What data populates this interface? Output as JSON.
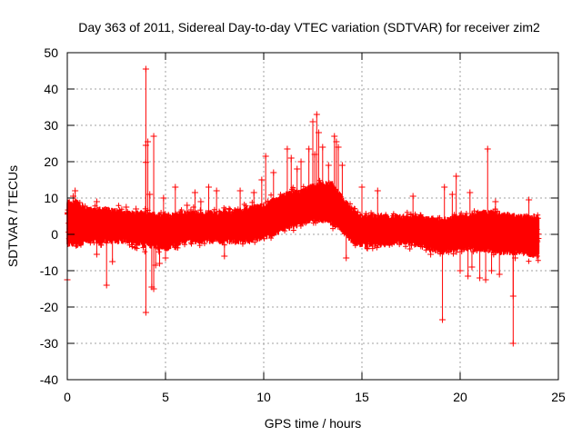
{
  "chart_data": {
    "type": "scatter",
    "title": "Day 363 of 2011, Sidereal Day-to-day VTEC variation (SDTVAR) for receiver zim2",
    "xlabel": "GPS time / hours",
    "ylabel": "SDTVAR / TECUs",
    "xlim": [
      0,
      25
    ],
    "ylim": [
      -40,
      50
    ],
    "xticks": [
      0,
      5,
      10,
      15,
      20,
      25
    ],
    "yticks": [
      -40,
      -30,
      -20,
      -10,
      0,
      10,
      20,
      30,
      40,
      50
    ],
    "grid": true,
    "marker": "+",
    "series_color": "#ff0000",
    "band": {
      "x": [
        0,
        0.5,
        1,
        2,
        3,
        4,
        5,
        6,
        7,
        8,
        9,
        10,
        11,
        12,
        12.7,
        13.5,
        14,
        14.5,
        15,
        16,
        17,
        18,
        19,
        20,
        21,
        22,
        23,
        24
      ],
      "lower": [
        -3,
        -3,
        -2,
        -2,
        -2,
        -3,
        -4,
        -2,
        -2,
        -2,
        -2,
        -1,
        1,
        3,
        4,
        3,
        1,
        -2,
        -3,
        -3,
        -2,
        -3,
        -5,
        -4,
        -4,
        -5,
        -5,
        -6
      ],
      "upper": [
        9,
        9,
        7,
        7,
        6,
        6,
        5,
        6,
        6,
        6,
        7,
        8,
        11,
        12,
        14,
        14,
        10,
        7,
        5,
        5,
        5,
        5,
        4,
        5,
        6,
        6,
        5,
        5
      ]
    },
    "outliers": [
      {
        "x": 4.0,
        "y": 45.5
      },
      {
        "x": 4.0,
        "y": 24.5
      },
      {
        "x": 4.1,
        "y": 25.5
      },
      {
        "x": 4.4,
        "y": 27.0
      },
      {
        "x": 4.0,
        "y": 19.8
      },
      {
        "x": 4.2,
        "y": 11.0
      },
      {
        "x": 4.0,
        "y": -21.5
      },
      {
        "x": 4.4,
        "y": -15.0
      },
      {
        "x": 4.3,
        "y": -14.5
      },
      {
        "x": 2.0,
        "y": -14.0
      },
      {
        "x": 0.0,
        "y": -12.5
      },
      {
        "x": 0.3,
        "y": 10.5
      },
      {
        "x": 0.4,
        "y": 12.0
      },
      {
        "x": 1.5,
        "y": 9.0
      },
      {
        "x": 1.5,
        "y": -5.5
      },
      {
        "x": 2.3,
        "y": -7.5
      },
      {
        "x": 3.0,
        "y": 7.5
      },
      {
        "x": 3.5,
        "y": 7.0
      },
      {
        "x": 4.5,
        "y": -8.5
      },
      {
        "x": 4.7,
        "y": -8.0
      },
      {
        "x": 4.9,
        "y": 10.0
      },
      {
        "x": 5.0,
        "y": -6.5
      },
      {
        "x": 5.5,
        "y": 13.0
      },
      {
        "x": 6.1,
        "y": 8.0
      },
      {
        "x": 6.5,
        "y": 11.5
      },
      {
        "x": 6.8,
        "y": 9.0
      },
      {
        "x": 7.2,
        "y": 13.0
      },
      {
        "x": 7.6,
        "y": 12.0
      },
      {
        "x": 8.0,
        "y": -6.0
      },
      {
        "x": 8.8,
        "y": 12.0
      },
      {
        "x": 9.5,
        "y": 11.5
      },
      {
        "x": 9.9,
        "y": 15.0
      },
      {
        "x": 10.1,
        "y": 21.5
      },
      {
        "x": 10.5,
        "y": 17.0
      },
      {
        "x": 11.2,
        "y": 23.5
      },
      {
        "x": 11.4,
        "y": 21.0
      },
      {
        "x": 11.7,
        "y": 18.0
      },
      {
        "x": 11.9,
        "y": 20.0
      },
      {
        "x": 12.3,
        "y": 23.5
      },
      {
        "x": 12.5,
        "y": 31.0
      },
      {
        "x": 12.7,
        "y": 33.0
      },
      {
        "x": 12.8,
        "y": 28.0
      },
      {
        "x": 12.6,
        "y": 22.0
      },
      {
        "x": 13.0,
        "y": 24.0
      },
      {
        "x": 13.3,
        "y": 19.0
      },
      {
        "x": 13.6,
        "y": 27.0
      },
      {
        "x": 13.7,
        "y": 25.5
      },
      {
        "x": 13.8,
        "y": 24.0
      },
      {
        "x": 14.0,
        "y": 19.0
      },
      {
        "x": 14.2,
        "y": -6.5
      },
      {
        "x": 15.0,
        "y": 13.0
      },
      {
        "x": 15.8,
        "y": 12.0
      },
      {
        "x": 17.6,
        "y": 10.5
      },
      {
        "x": 18.5,
        "y": -5.5
      },
      {
        "x": 19.1,
        "y": -23.5
      },
      {
        "x": 19.2,
        "y": 13.0
      },
      {
        "x": 19.6,
        "y": 11.0
      },
      {
        "x": 19.8,
        "y": 16.0
      },
      {
        "x": 20.0,
        "y": -10.0
      },
      {
        "x": 20.4,
        "y": -11.5
      },
      {
        "x": 20.5,
        "y": 11.5
      },
      {
        "x": 20.6,
        "y": -9.0
      },
      {
        "x": 21.0,
        "y": -12.0
      },
      {
        "x": 21.4,
        "y": 23.5
      },
      {
        "x": 21.3,
        "y": -12.5
      },
      {
        "x": 21.6,
        "y": -10.0
      },
      {
        "x": 21.8,
        "y": 9.0
      },
      {
        "x": 22.0,
        "y": -11.0
      },
      {
        "x": 22.7,
        "y": -30.0
      },
      {
        "x": 22.7,
        "y": -17.0
      },
      {
        "x": 22.8,
        "y": -6.5
      },
      {
        "x": 23.5,
        "y": 9.5
      },
      {
        "x": 23.9,
        "y": -6.0
      }
    ]
  }
}
